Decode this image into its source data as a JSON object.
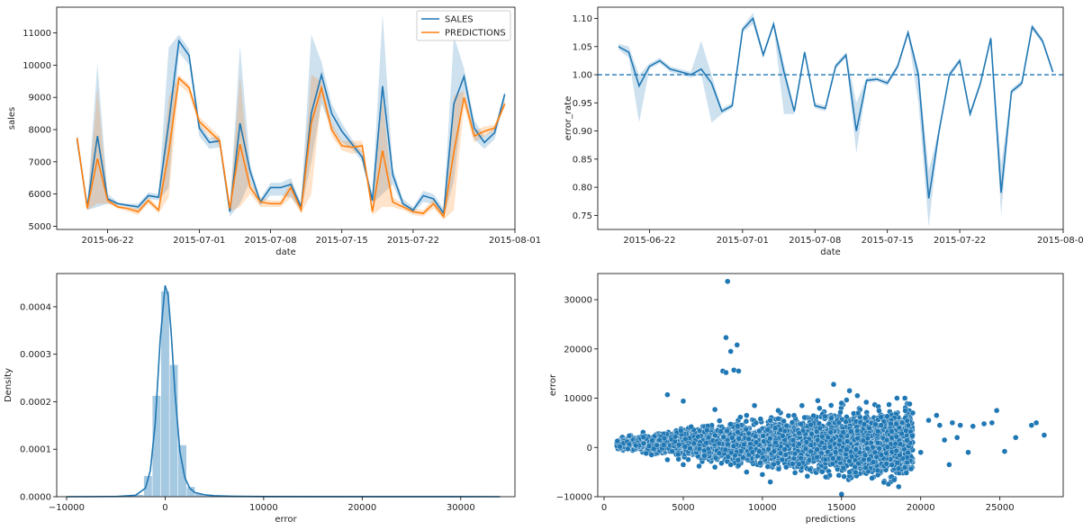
{
  "colors": {
    "sales": "#1f77b4",
    "predictions": "#ff7f0e",
    "hist": "#a6c8e0"
  },
  "chart_data": [
    {
      "type": "line",
      "xlabel": "date",
      "ylabel": "sales",
      "xlim": [
        "2015-06-17",
        "2015-08-01"
      ],
      "ylim": [
        4900,
        11800
      ],
      "xticks": [
        "2015-06-22",
        "2015-07-01",
        "2015-07-08",
        "2015-07-15",
        "2015-07-22",
        "2015-08-01"
      ],
      "yticks": [
        5000,
        6000,
        7000,
        8000,
        9000,
        10000,
        11000
      ],
      "legend": {
        "position": "top-right",
        "entries": [
          "SALES",
          "PREDICTIONS"
        ]
      },
      "x": [
        "2015-06-19",
        "2015-06-20",
        "2015-06-21",
        "2015-06-22",
        "2015-06-23",
        "2015-06-24",
        "2015-06-25",
        "2015-06-26",
        "2015-06-27",
        "2015-06-28",
        "2015-06-29",
        "2015-06-30",
        "2015-07-01",
        "2015-07-02",
        "2015-07-03",
        "2015-07-04",
        "2015-07-05",
        "2015-07-06",
        "2015-07-07",
        "2015-07-08",
        "2015-07-09",
        "2015-07-10",
        "2015-07-11",
        "2015-07-12",
        "2015-07-13",
        "2015-07-14",
        "2015-07-15",
        "2015-07-16",
        "2015-07-17",
        "2015-07-18",
        "2015-07-19",
        "2015-07-20",
        "2015-07-21",
        "2015-07-22",
        "2015-07-23",
        "2015-07-24",
        "2015-07-25",
        "2015-07-26",
        "2015-07-27",
        "2015-07-28",
        "2015-07-29",
        "2015-07-30",
        "2015-07-31"
      ],
      "series": [
        {
          "name": "SALES",
          "values": [
            7700,
            5600,
            7800,
            5850,
            5700,
            5650,
            5600,
            5950,
            5900,
            8200,
            10750,
            10300,
            8050,
            7600,
            7650,
            5450,
            8200,
            6700,
            5750,
            6200,
            6200,
            6300,
            5600,
            8500,
            9700,
            8500,
            7950,
            7550,
            7150,
            5800,
            9350,
            6600,
            5700,
            5500,
            5950,
            5850,
            5400,
            8800,
            9650,
            8050,
            7600,
            7900,
            9100
          ],
          "lower": [
            7500,
            5500,
            5600,
            5700,
            5650,
            5600,
            5500,
            5850,
            5800,
            6200,
            10400,
            10000,
            7800,
            7400,
            7450,
            5300,
            5700,
            6400,
            5650,
            5950,
            5950,
            5900,
            5500,
            7000,
            8800,
            8050,
            7600,
            7400,
            7000,
            5700,
            6000,
            6300,
            5600,
            5400,
            5750,
            5700,
            5250,
            6400,
            9200,
            7700,
            7400,
            7700,
            8900
          ],
          "upper": [
            7900,
            5700,
            10050,
            6000,
            5750,
            5700,
            5700,
            6050,
            6000,
            10550,
            10950,
            10500,
            8200,
            7750,
            7800,
            5600,
            10600,
            6900,
            5850,
            6350,
            6350,
            6500,
            5700,
            10950,
            10100,
            8800,
            8200,
            7700,
            7300,
            6000,
            11600,
            6800,
            5850,
            5600,
            6100,
            6000,
            5550,
            10900,
            9900,
            8300,
            7800,
            8050,
            9200
          ]
        },
        {
          "name": "PREDICTIONS",
          "values": [
            7750,
            5550,
            7100,
            5800,
            5600,
            5550,
            5450,
            5800,
            5500,
            7300,
            9600,
            9300,
            8250,
            7950,
            7650,
            5550,
            7550,
            6200,
            5750,
            5700,
            5700,
            6200,
            5500,
            8200,
            9300,
            8000,
            7500,
            7450,
            7500,
            5450,
            7350,
            5750,
            5600,
            5450,
            5400,
            5700,
            5300,
            7300,
            9000,
            7800,
            7950,
            8050,
            8800
          ],
          "lower": [
            7700,
            5500,
            5700,
            5700,
            5550,
            5450,
            5350,
            5700,
            5400,
            5900,
            9400,
            9100,
            8100,
            7800,
            7500,
            5450,
            5600,
            6000,
            5600,
            5600,
            5600,
            5900,
            5400,
            6000,
            9000,
            7800,
            7350,
            7250,
            7300,
            5350,
            5600,
            5600,
            5500,
            5350,
            5300,
            5550,
            5200,
            5500,
            8700,
            7600,
            7800,
            7950,
            8700
          ],
          "upper": [
            7800,
            5600,
            9300,
            5900,
            5650,
            5600,
            5550,
            5900,
            5600,
            9000,
            9700,
            9400,
            8400,
            8100,
            7800,
            5650,
            9700,
            6400,
            5900,
            5800,
            5800,
            6400,
            5600,
            9700,
            9500,
            8200,
            7650,
            7650,
            7650,
            5550,
            9000,
            5900,
            5700,
            5550,
            5500,
            5850,
            5400,
            9050,
            9200,
            7950,
            8100,
            8150,
            8900
          ]
        }
      ]
    },
    {
      "type": "line",
      "xlabel": "date",
      "ylabel": "error_rate",
      "xlim": [
        "2015-06-17",
        "2015-08-01"
      ],
      "ylim": [
        0.725,
        1.12
      ],
      "xticks": [
        "2015-06-22",
        "2015-07-01",
        "2015-07-08",
        "2015-07-15",
        "2015-07-22",
        "2015-08-01"
      ],
      "yticks": [
        0.75,
        0.8,
        0.85,
        0.9,
        0.95,
        1.0,
        1.05,
        1.1
      ],
      "reference_line": 1.0,
      "x": [
        "2015-06-19",
        "2015-06-20",
        "2015-06-21",
        "2015-06-22",
        "2015-06-23",
        "2015-06-24",
        "2015-06-25",
        "2015-06-26",
        "2015-06-27",
        "2015-06-28",
        "2015-06-29",
        "2015-06-30",
        "2015-07-01",
        "2015-07-02",
        "2015-07-03",
        "2015-07-04",
        "2015-07-05",
        "2015-07-06",
        "2015-07-07",
        "2015-07-08",
        "2015-07-09",
        "2015-07-10",
        "2015-07-11",
        "2015-07-12",
        "2015-07-13",
        "2015-07-14",
        "2015-07-15",
        "2015-07-16",
        "2015-07-17",
        "2015-07-18",
        "2015-07-19",
        "2015-07-20",
        "2015-07-21",
        "2015-07-22",
        "2015-07-23",
        "2015-07-24",
        "2015-07-25",
        "2015-07-26",
        "2015-07-27",
        "2015-07-28",
        "2015-07-29",
        "2015-07-30",
        "2015-07-31"
      ],
      "series": [
        {
          "name": "",
          "values": [
            1.05,
            1.04,
            0.98,
            1.015,
            1.025,
            1.01,
            1.005,
            1.0,
            1.01,
            0.985,
            0.935,
            0.945,
            1.08,
            1.1,
            1.035,
            1.09,
            1.005,
            0.935,
            1.04,
            0.945,
            0.94,
            1.015,
            1.035,
            0.9,
            0.99,
            0.992,
            0.985,
            1.015,
            1.075,
            1.0,
            0.78,
            0.9,
            1.0,
            1.025,
            0.93,
            0.985,
            1.065,
            0.79,
            0.97,
            0.985,
            1.085,
            1.06,
            1.005
          ],
          "lower": [
            1.045,
            1.03,
            0.915,
            1.01,
            1.02,
            1.005,
            1.0,
            0.995,
            1.0,
            0.915,
            0.93,
            0.94,
            1.075,
            1.09,
            1.03,
            1.085,
            0.93,
            0.93,
            1.035,
            0.94,
            0.935,
            1.01,
            1.03,
            0.86,
            0.985,
            0.988,
            0.98,
            1.01,
            1.07,
            0.95,
            0.73,
            0.895,
            0.995,
            1.02,
            0.925,
            0.98,
            1.06,
            0.75,
            0.965,
            0.98,
            1.08,
            1.055,
            1.0
          ],
          "upper": [
            1.055,
            1.05,
            1.0,
            1.02,
            1.03,
            1.015,
            1.01,
            1.005,
            1.06,
            1.0,
            0.94,
            0.95,
            1.085,
            1.11,
            1.04,
            1.095,
            1.02,
            0.94,
            1.045,
            0.95,
            0.945,
            1.02,
            1.04,
            0.95,
            0.995,
            0.996,
            0.99,
            1.02,
            1.08,
            1.01,
            0.83,
            0.905,
            1.005,
            1.03,
            0.935,
            0.99,
            1.07,
            0.84,
            0.975,
            0.99,
            1.09,
            1.065,
            1.01
          ]
        }
      ]
    },
    {
      "type": "area",
      "xlabel": "error",
      "ylabel": "Density",
      "xlim": [
        -11000,
        35500
      ],
      "ylim": [
        0,
        0.00047
      ],
      "xticks": [
        -10000,
        0,
        10000,
        20000,
        30000
      ],
      "xtick_labels": [
        "−10000",
        "0",
        "10000",
        "20000",
        "30000"
      ],
      "yticks": [
        0.0,
        0.0001,
        0.0002,
        0.0003,
        0.0004
      ],
      "ytick_labels": [
        "0.0000",
        "0.0001",
        "0.0002",
        "0.0003",
        "0.0004"
      ],
      "histogram": {
        "bin_width": 870,
        "bins": [
          {
            "x": -2610,
            "density": 4.5e-06
          },
          {
            "x": -1740,
            "density": 4.4e-05
          },
          {
            "x": -870,
            "density": 0.000213
          },
          {
            "x": 0,
            "density": 0.000433
          },
          {
            "x": 870,
            "density": 0.000278
          },
          {
            "x": 1740,
            "density": 0.000109
          },
          {
            "x": 2610,
            "density": 2.1e-05
          },
          {
            "x": 3480,
            "density": 7e-06
          },
          {
            "x": 4350,
            "density": 3e-06
          }
        ]
      },
      "kde": {
        "x": [
          -10000,
          -5000,
          -3000,
          -2000,
          -1500,
          -1000,
          -500,
          0,
          300,
          600,
          1000,
          1500,
          2000,
          2500,
          3000,
          4000,
          5000,
          7000,
          10000,
          20000,
          34000
        ],
        "y": [
          0,
          5e-07,
          3e-06,
          1.8e-05,
          5.5e-05,
          0.000155,
          0.00033,
          0.000445,
          0.000425,
          0.00035,
          0.00022,
          9.5e-05,
          4e-05,
          1.8e-05,
          9e-06,
          4e-06,
          2e-06,
          8e-07,
          3e-07,
          1e-07,
          0
        ]
      }
    },
    {
      "type": "scatter",
      "xlabel": "predictions",
      "ylabel": "error",
      "xlim": [
        -400,
        29000
      ],
      "ylim": [
        -10000,
        35300
      ],
      "xticks": [
        0,
        5000,
        10000,
        15000,
        20000,
        25000
      ],
      "yticks": [
        -10000,
        0,
        10000,
        20000,
        30000
      ],
      "yticks_labels": [
        "−10000",
        "0",
        "10000",
        "20000",
        "30000"
      ],
      "points": [
        [
          1000,
          200
        ],
        [
          1500,
          -300
        ],
        [
          2000,
          400
        ],
        [
          2500,
          800
        ],
        [
          3000,
          -1500
        ],
        [
          3500,
          1500
        ],
        [
          4000,
          10700
        ],
        [
          4000,
          -2500
        ],
        [
          4500,
          2200
        ],
        [
          5000,
          9400
        ],
        [
          5000,
          -3500
        ],
        [
          5500,
          4200
        ],
        [
          6000,
          -3800
        ],
        [
          6500,
          3500
        ],
        [
          7000,
          7700
        ],
        [
          7000,
          -4000
        ],
        [
          7500,
          15500
        ],
        [
          7700,
          15200
        ],
        [
          7700,
          22300
        ],
        [
          7800,
          33700
        ],
        [
          8000,
          19500
        ],
        [
          8200,
          15700
        ],
        [
          8400,
          20800
        ],
        [
          8500,
          15500
        ],
        [
          8000,
          -3500
        ],
        [
          9000,
          6500
        ],
        [
          9000,
          -5000
        ],
        [
          9500,
          8500
        ],
        [
          10000,
          -5500
        ],
        [
          10500,
          5500
        ],
        [
          10500,
          -7000
        ],
        [
          11000,
          7500
        ],
        [
          11500,
          -4000
        ],
        [
          12000,
          6500
        ],
        [
          12500,
          8500
        ],
        [
          13000,
          -4500
        ],
        [
          13500,
          9500
        ],
        [
          14000,
          -6000
        ],
        [
          14500,
          12800
        ],
        [
          15000,
          9000
        ],
        [
          15000,
          -9500
        ],
        [
          15500,
          11500
        ],
        [
          15500,
          -5000
        ],
        [
          16000,
          10500
        ],
        [
          16500,
          6000
        ],
        [
          17000,
          -3000
        ],
        [
          17500,
          4500
        ],
        [
          18000,
          8700
        ],
        [
          18500,
          10000
        ],
        [
          19000,
          10000
        ],
        [
          19500,
          7000
        ],
        [
          20000,
          -1000
        ],
        [
          20500,
          5500
        ],
        [
          21000,
          6500
        ],
        [
          21200,
          4500
        ],
        [
          21500,
          1500
        ],
        [
          21800,
          -3500
        ],
        [
          22000,
          5000
        ],
        [
          22300,
          2000
        ],
        [
          22500,
          4500
        ],
        [
          23000,
          -1000
        ],
        [
          23300,
          4300
        ],
        [
          24000,
          4800
        ],
        [
          24500,
          5000
        ],
        [
          24800,
          7500
        ],
        [
          25300,
          -800
        ],
        [
          26000,
          2000
        ],
        [
          27000,
          4500
        ],
        [
          27300,
          5000
        ],
        [
          27800,
          2500
        ]
      ],
      "cloud": {
        "x_range": [
          800,
          19500
        ],
        "center": 800,
        "spread_at_low_x": 1200,
        "spread_at_high_x": 8500,
        "count": 4200
      }
    }
  ]
}
